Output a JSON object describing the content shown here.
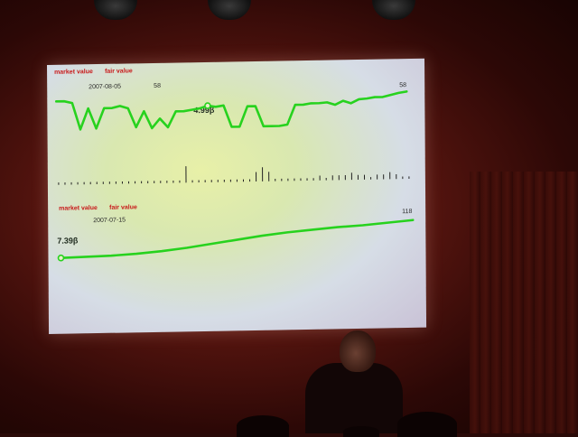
{
  "slide": {
    "chart_top": {
      "legend_market": "market value",
      "legend_fair": "fair value",
      "date": "2007-08-05",
      "count": "58",
      "marker_value": "4.99β",
      "end_value": "58"
    },
    "chart_bottom": {
      "legend_market": "market value",
      "legend_fair": "fair value",
      "date": "2007-07-15",
      "marker_value": "7.39β",
      "end_value": "118"
    },
    "line_color": "#27d21e",
    "legend_color": "#c81818"
  },
  "chart_data": [
    {
      "type": "line",
      "ylim": [
        0,
        10
      ],
      "values": [
        8.5,
        8.5,
        8.2,
        4.0,
        7.3,
        4.1,
        7.3,
        7.3,
        7.6,
        7.2,
        4.2,
        6.7,
        4.0,
        5.5,
        4.1,
        6.6,
        6.6,
        6.8,
        7.0,
        7.4,
        7.2,
        7.4,
        4.0,
        4.0,
        7.2,
        7.2,
        4.0,
        4.0,
        4.0,
        4.2,
        7.3,
        7.3,
        7.5,
        7.5,
        7.6,
        7.2,
        7.8,
        7.4,
        8.0,
        8.1,
        8.3,
        8.3,
        8.6,
        8.9,
        9.1
      ],
      "bars": [
        0.1,
        0.1,
        0.1,
        0.1,
        0.1,
        0.1,
        0.1,
        0.1,
        0.1,
        0.1,
        0.1,
        0.1,
        0.1,
        0.1,
        0.1,
        0.1,
        0.1,
        0.1,
        0.1,
        0.1,
        0.7,
        0.1,
        0.1,
        0.1,
        0.1,
        0.1,
        0.1,
        0.1,
        0.1,
        0.1,
        0.1,
        0.4,
        0.6,
        0.4,
        0.1,
        0.1,
        0.1,
        0.1,
        0.1,
        0.1,
        0.1,
        0.2,
        0.1,
        0.2,
        0.2,
        0.2,
        0.3,
        0.2,
        0.2,
        0.1,
        0.2,
        0.2,
        0.3,
        0.2,
        0.1,
        0.1
      ],
      "marker_index": 19
    },
    {
      "type": "line",
      "ylim": [
        0,
        10
      ],
      "values": [
        2.0,
        2.1,
        2.2,
        2.4,
        2.7,
        3.1,
        3.6,
        4.1,
        4.6,
        5.0,
        5.3,
        5.6,
        5.8,
        6.1,
        6.4
      ],
      "marker_index": 0
    }
  ]
}
